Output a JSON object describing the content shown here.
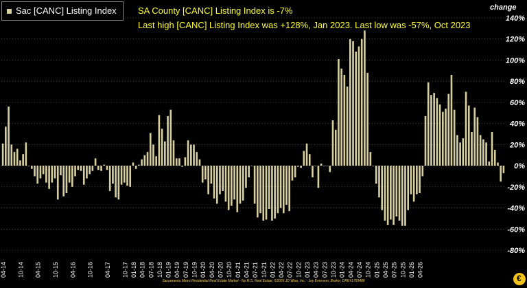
{
  "legend": {
    "label": "Sac [CANC] Listing Index",
    "color": "#d8cf9e"
  },
  "subtitles": [
    "SA County [CANC] Listing Index is -7%",
    "Last high [CANC] Listing Index was +128%, Jan 2023. Last low was -57%, Oct 2023"
  ],
  "axis_title": "change",
  "footer": "Sacramento Metro Residential Real Estate Market - No R.S. Real Estate, ©2026 JD Wise, Inc. - Joy Emerson, Broker, DRE#1769488",
  "colors": {
    "background": "#000000",
    "bar": "#d8cf9e",
    "subtitle": "#ffff33",
    "grid": "#777777"
  },
  "chart_data": {
    "type": "bar",
    "ylim": [
      -80,
      140
    ],
    "yticks": [
      "140%",
      "120%",
      "100%",
      "80%",
      "60%",
      "40%",
      "20%",
      "0%",
      "-20%",
      "-40%",
      "-60%",
      "-80%"
    ],
    "grid": true,
    "xticks": [
      "04-14",
      "10-14",
      "04-15",
      "10-15",
      "04-16",
      "10-16",
      "04-17",
      "10-17",
      "01-18",
      "04-18",
      "07-18",
      "10-18",
      "01-19",
      "04-19",
      "07-19",
      "10-19",
      "01-20",
      "04-20",
      "07-20",
      "10-20",
      "01-21",
      "04-21",
      "07-21",
      "10-21",
      "01-22",
      "04-22",
      "07-22",
      "10-22",
      "01-23",
      "04-23",
      "07-23",
      "10-23",
      "01-24",
      "04-24",
      "07-24",
      "10-24",
      "01-25",
      "04-25",
      "07-25",
      "10-25",
      "01-26",
      "04-26"
    ],
    "values": [
      21,
      37,
      56,
      20,
      13,
      16,
      5,
      11,
      22,
      0,
      -3,
      -10,
      -17,
      -12,
      -8,
      -16,
      -22,
      -16,
      -12,
      -32,
      -9,
      -29,
      -26,
      -16,
      -20,
      -10,
      -4,
      -5,
      -18,
      -12,
      -8,
      -5,
      7,
      -4,
      -5,
      1,
      -4,
      -24,
      -17,
      -30,
      -32,
      -18,
      -16,
      -19,
      -20,
      3,
      -3,
      1,
      6,
      10,
      13,
      31,
      20,
      9,
      48,
      35,
      23,
      47,
      53,
      24,
      7,
      7,
      -1,
      8,
      24,
      20,
      20,
      13,
      6,
      -16,
      -13,
      -27,
      -17,
      -31,
      -36,
      -27,
      -24,
      -34,
      -42,
      -38,
      -32,
      -44,
      -36,
      -33,
      -21,
      -11,
      0,
      -36,
      -49,
      -45,
      -52,
      -51,
      -41,
      -52,
      -50,
      -45,
      -40,
      -45,
      -37,
      -43,
      -14,
      -11,
      -1,
      -2,
      14,
      21,
      11,
      -11,
      0,
      -21,
      2,
      0,
      0,
      -6,
      43,
      34,
      101,
      92,
      86,
      75,
      120,
      118,
      108,
      113,
      120,
      128,
      88,
      13,
      0,
      -17,
      -30,
      -42,
      -52,
      -56,
      -51,
      -56,
      -48,
      -52,
      -57,
      -57,
      -42,
      -27,
      -34,
      -27,
      -26,
      -10,
      47,
      79,
      67,
      69,
      64,
      58,
      51,
      54,
      68,
      86,
      53,
      29,
      22,
      26,
      70,
      57,
      32,
      55,
      46,
      29,
      25,
      22,
      4,
      32,
      15,
      3,
      -15,
      -7
    ]
  }
}
